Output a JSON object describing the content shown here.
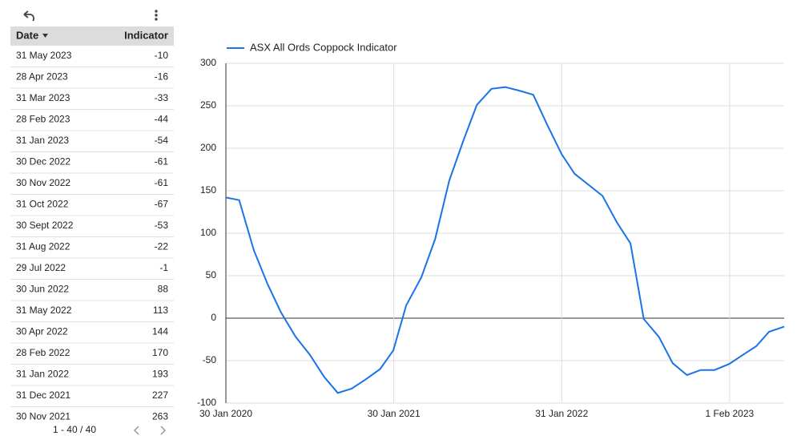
{
  "table": {
    "columns": [
      "Date",
      "Indicator"
    ],
    "rows": [
      [
        "31 May 2023",
        -10
      ],
      [
        "28 Apr 2023",
        -16
      ],
      [
        "31 Mar 2023",
        -33
      ],
      [
        "28 Feb 2023",
        -44
      ],
      [
        "31 Jan 2023",
        -54
      ],
      [
        "30 Dec 2022",
        -61
      ],
      [
        "30 Nov 2022",
        -61
      ],
      [
        "31 Oct 2022",
        -67
      ],
      [
        "30 Sept 2022",
        -53
      ],
      [
        "31 Aug 2022",
        -22
      ],
      [
        "29 Jul 2022",
        -1
      ],
      [
        "30 Jun 2022",
        88
      ],
      [
        "31 May 2022",
        113
      ],
      [
        "30 Apr 2022",
        144
      ],
      [
        "28 Feb 2022",
        170
      ],
      [
        "31 Jan 2022",
        193
      ],
      [
        "31 Dec 2021",
        227
      ],
      [
        "30 Nov 2021",
        263
      ]
    ],
    "pagination": "1 - 40 / 40"
  },
  "chart_data": {
    "type": "line",
    "x": [
      "2020-01-31",
      "2020-02-28",
      "2020-03-31",
      "2020-04-30",
      "2020-05-29",
      "2020-06-30",
      "2020-07-31",
      "2020-08-31",
      "2020-09-30",
      "2020-10-30",
      "2020-11-30",
      "2020-12-31",
      "2021-01-29",
      "2021-02-26",
      "2021-03-31",
      "2021-04-30",
      "2021-05-31",
      "2021-06-30",
      "2021-07-30",
      "2021-08-31",
      "2021-09-30",
      "2021-10-29",
      "2021-11-30",
      "2021-12-31",
      "2022-01-31",
      "2022-02-28",
      "2022-04-30",
      "2022-05-31",
      "2022-06-30",
      "2022-07-29",
      "2022-08-31",
      "2022-09-30",
      "2022-10-31",
      "2022-11-30",
      "2022-12-30",
      "2023-01-31",
      "2023-02-28",
      "2023-03-31",
      "2023-04-28",
      "2023-05-31"
    ],
    "series": [
      {
        "name": "ASX All Ords Coppock Indicator",
        "color": "#1a73e8",
        "values": [
          142,
          139,
          80,
          40,
          7,
          -22,
          -43,
          -69,
          -88,
          -83,
          -72,
          -60,
          -38,
          15,
          48,
          93,
          162,
          208,
          251,
          270,
          272,
          268,
          263,
          227,
          193,
          170,
          144,
          113,
          88,
          -1,
          -22,
          -53,
          -67,
          -61,
          -61,
          -54,
          -44,
          -33,
          -16,
          -10
        ]
      }
    ],
    "xlim": [
      "2020-01-30",
      "2023-05-31"
    ],
    "xticks": [
      {
        "value": "2020-01-30",
        "label": "30 Jan 2020"
      },
      {
        "value": "2021-01-30",
        "label": "30 Jan 2021"
      },
      {
        "value": "2022-01-31",
        "label": "31 Jan 2022"
      },
      {
        "value": "2023-02-01",
        "label": "1 Feb 2023"
      }
    ],
    "ylim": [
      -100,
      300
    ],
    "yticks": [
      -100,
      -50,
      0,
      50,
      100,
      150,
      200,
      250,
      300
    ],
    "grid": true
  }
}
